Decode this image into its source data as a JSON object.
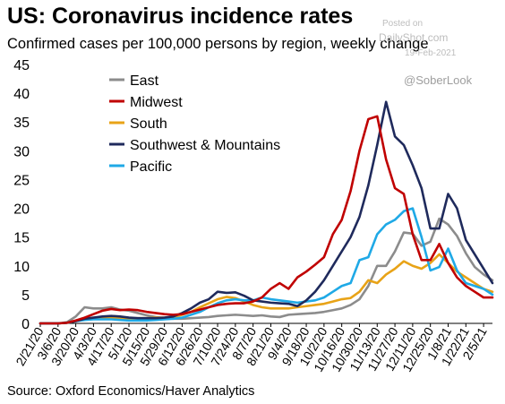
{
  "title": "US: Coronavirus incidence rates",
  "subtitle": "Confirmed cases per 100,000 persons by region, weekly change",
  "watermark": {
    "posted": "Posted on",
    "site": "DailyShot.com",
    "date": "19-Feb-2021"
  },
  "handle": "@SoberLook",
  "source": "Source: Oxford Economics/Haver Analytics",
  "chart_data": {
    "type": "line",
    "ylim": [
      0,
      45
    ],
    "yticks": [
      0,
      5,
      10,
      15,
      20,
      25,
      30,
      35,
      40,
      45
    ],
    "grid": false,
    "legend_position": "top-left",
    "x_ticklabels": [
      "2/21/20",
      "3/6/20",
      "3/20/20",
      "4/3/20",
      "4/17/20",
      "5/1/20",
      "5/15/20",
      "5/29/20",
      "6/12/20",
      "6/26/20",
      "7/10/20",
      "7/24/20",
      "8/7/20",
      "8/21/20",
      "9/4/20",
      "9/18/20",
      "10/2/20",
      "10/16/20",
      "10/30/20",
      "11/13/20",
      "11/27/20",
      "12/11/20",
      "12/25/20",
      "1/8/21",
      "1/22/21",
      "2/5/21"
    ],
    "x": [
      "2/21/20",
      "2/28/20",
      "3/6/20",
      "3/13/20",
      "3/20/20",
      "3/27/20",
      "4/3/20",
      "4/10/20",
      "4/17/20",
      "4/24/20",
      "5/1/20",
      "5/8/20",
      "5/15/20",
      "5/22/20",
      "5/29/20",
      "6/5/20",
      "6/12/20",
      "6/19/20",
      "6/26/20",
      "7/3/20",
      "7/10/20",
      "7/17/20",
      "7/24/20",
      "7/31/20",
      "8/7/20",
      "8/14/20",
      "8/21/20",
      "8/28/20",
      "9/4/20",
      "9/11/20",
      "9/18/20",
      "9/25/20",
      "10/2/20",
      "10/9/20",
      "10/16/20",
      "10/23/20",
      "10/30/20",
      "11/6/20",
      "11/13/20",
      "11/20/20",
      "11/27/20",
      "12/4/20",
      "12/11/20",
      "12/18/20",
      "12/25/20",
      "1/1/21",
      "1/8/21",
      "1/15/21",
      "1/22/21",
      "1/29/21",
      "2/5/21",
      "2/12/21"
    ],
    "series": [
      {
        "name": "East",
        "color": "#8c8c8c",
        "values": [
          0,
          0,
          0,
          0.2,
          1.2,
          2.8,
          2.6,
          2.6,
          2.8,
          2.4,
          2.2,
          1.8,
          1.4,
          1.1,
          0.9,
          0.8,
          0.8,
          0.9,
          1.0,
          1.1,
          1.3,
          1.4,
          1.5,
          1.4,
          1.3,
          1.4,
          1.2,
          1.1,
          1.5,
          1.6,
          1.7,
          1.8,
          2.0,
          2.3,
          2.6,
          3.2,
          4.2,
          6.5,
          10.0,
          10.0,
          12.5,
          15.8,
          15.6,
          13.5,
          14.2,
          18.2,
          17.2,
          15.2,
          12.2,
          9.8,
          8.5,
          7.5
        ]
      },
      {
        "name": "Midwest",
        "color": "#c00000",
        "values": [
          0,
          0,
          0,
          0.1,
          0.5,
          1.0,
          1.6,
          2.2,
          2.5,
          2.3,
          2.4,
          2.3,
          2.0,
          1.8,
          1.6,
          1.5,
          1.6,
          2.0,
          2.4,
          2.8,
          3.2,
          3.4,
          3.5,
          3.5,
          3.8,
          4.5,
          6.0,
          7.0,
          6.0,
          8.0,
          9.0,
          10.2,
          11.5,
          15.5,
          18.0,
          23.0,
          30.0,
          35.5,
          36.0,
          28.5,
          23.5,
          22.5,
          15.5,
          11.0,
          11.0,
          13.8,
          10.5,
          8.0,
          6.5,
          5.5,
          4.5,
          4.5
        ]
      },
      {
        "name": "South",
        "color": "#e8a317",
        "values": [
          0,
          0,
          0,
          0.1,
          0.4,
          0.8,
          0.9,
          0.9,
          0.9,
          0.9,
          0.9,
          0.9,
          0.9,
          1.0,
          1.0,
          1.1,
          1.5,
          2.0,
          2.8,
          3.5,
          4.2,
          4.6,
          4.4,
          3.8,
          3.2,
          2.8,
          2.6,
          2.6,
          2.6,
          2.8,
          3.0,
          3.2,
          3.4,
          3.8,
          4.2,
          4.4,
          5.5,
          7.5,
          7.0,
          8.5,
          9.5,
          10.8,
          10.0,
          9.5,
          10.5,
          12.0,
          10.5,
          9.0,
          8.0,
          7.0,
          6.0,
          5.5
        ]
      },
      {
        "name": "Southwest & Mountains",
        "color": "#1f2a5c",
        "values": [
          0,
          0,
          0,
          0.1,
          0.4,
          0.8,
          1.0,
          1.2,
          1.3,
          1.2,
          1.0,
          0.9,
          0.9,
          0.9,
          1.0,
          1.2,
          1.8,
          2.6,
          3.6,
          4.2,
          5.5,
          5.3,
          5.4,
          4.8,
          4.0,
          3.8,
          3.6,
          3.5,
          3.4,
          3.0,
          4.0,
          5.5,
          7.5,
          10.0,
          12.5,
          15.0,
          18.5,
          24.0,
          31.0,
          38.5,
          32.5,
          31.0,
          27.5,
          23.5,
          16.5,
          16.5,
          22.5,
          20.0,
          14.5,
          12.0,
          9.5,
          7.0
        ]
      },
      {
        "name": "Pacific",
        "color": "#1fa9e6",
        "values": [
          0,
          0,
          0,
          0.1,
          0.4,
          0.6,
          0.7,
          0.7,
          0.7,
          0.6,
          0.5,
          0.5,
          0.5,
          0.6,
          0.7,
          0.8,
          1.0,
          1.5,
          2.0,
          2.8,
          3.5,
          4.0,
          4.2,
          4.0,
          4.0,
          4.5,
          4.2,
          4.0,
          3.8,
          3.6,
          3.8,
          4.0,
          4.5,
          5.5,
          6.5,
          7.0,
          11.0,
          11.5,
          15.5,
          17.2,
          18.0,
          19.5,
          20.0,
          15.0,
          9.2,
          9.8,
          13.0,
          9.2,
          7.0,
          6.5,
          6.0,
          5.0
        ]
      }
    ]
  }
}
